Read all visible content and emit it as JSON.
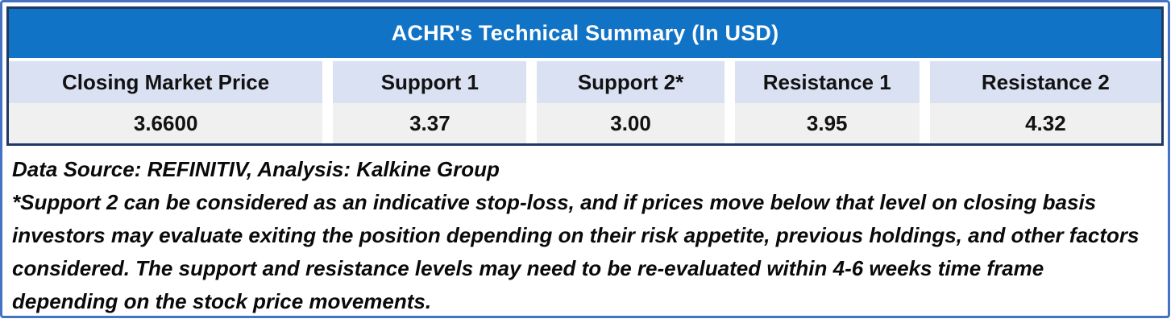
{
  "chart_data": {
    "type": "table",
    "title": "ACHR's Technical Summary (In USD)",
    "ticker": "ACHR",
    "currency": "USD",
    "columns": [
      {
        "header": "Closing Market Price",
        "value": "3.6600"
      },
      {
        "header": "Support 1",
        "value": "3.37"
      },
      {
        "header": "Support 2*",
        "value": "3.00"
      },
      {
        "header": "Resistance 1",
        "value": "3.95"
      },
      {
        "header": "Resistance 2",
        "value": "4.32"
      }
    ]
  },
  "footnotes": {
    "source": "Data Source: REFINITIV, Analysis: Kalkine Group",
    "disclaimer": "*Support 2 can be considered as an indicative stop-loss, and if prices move below that level on closing basis investors may evaluate exiting the position depending on their risk appetite, previous holdings, and other factors considered. The support and resistance levels may need to be re-evaluated within 4-6 weeks time frame depending on the stock price movements."
  },
  "colors": {
    "title_bar_blue": "#1173C5",
    "table_border_navy": "#1F3864",
    "outer_frame_blue": "#4472C4",
    "header_cell_bg": "#D9E1F3",
    "value_cell_bg": "#F0F0F0",
    "title_text": "#FFFFFF",
    "body_text": "#0A0A0A"
  }
}
